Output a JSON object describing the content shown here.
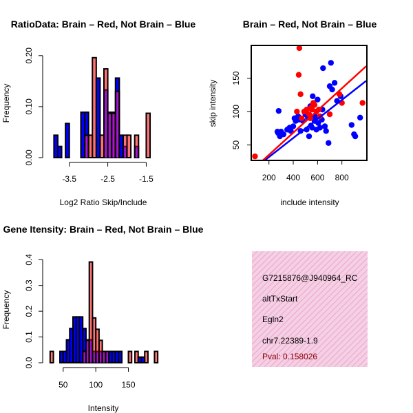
{
  "colors": {
    "red": "#ff0000",
    "blue": "#0000ff",
    "purple": "#a020f0",
    "info_bg": "#f5cfe4",
    "info_hatch": "#e9a6cc",
    "pval": "#8b0000"
  },
  "info_box": {
    "probe_id": "G7215876@J940964_RC",
    "event_type": "altTxStart",
    "gene": "Egln2",
    "location": "chr7.22389-1.9",
    "pval": "Pval: 0.158026"
  },
  "chart_data": [
    {
      "id": "ratio",
      "type": "bar",
      "title": "RatioData: Brain – Red, Not Brain – Blue",
      "xlabel": "Log2 Ratio Skip/Include",
      "ylabel": "Frequency",
      "xlim": [
        -4.05,
        -1.15
      ],
      "ylim": [
        0,
        0.22
      ],
      "xticks": [
        -3.5,
        -2.5,
        -1.5
      ],
      "xtick_labels": [
        "-3.5",
        "-2.5",
        "-1.5"
      ],
      "yticks": [
        0,
        0.1,
        0.2
      ],
      "ytick_labels": [
        "0.00",
        "0.10",
        "0.20"
      ],
      "bin_width": 0.1,
      "series": [
        {
          "name": "Not Brain",
          "color": "blue",
          "bins": [
            [
              -3.9,
              0.044
            ],
            [
              -3.8,
              0.022
            ],
            [
              -3.6,
              0.067
            ],
            [
              -3.2,
              0.089
            ],
            [
              -3.1,
              0.089
            ],
            [
              -2.8,
              0.156
            ],
            [
              -2.6,
              0.133
            ],
            [
              -2.5,
              0.089
            ],
            [
              -2.4,
              0.089
            ],
            [
              -2.3,
              0.156
            ],
            [
              -2.2,
              0.044
            ],
            [
              -2.1,
              0.022
            ],
            [
              -1.8,
              0.022
            ]
          ]
        },
        {
          "name": "Brain",
          "color": "red",
          "bins": [
            [
              -3.1,
              0.044
            ],
            [
              -3.0,
              0.044
            ],
            [
              -2.9,
              0.196
            ],
            [
              -2.7,
              0.044
            ],
            [
              -2.6,
              0.174
            ],
            [
              -2.5,
              0.087
            ],
            [
              -2.4,
              0.087
            ],
            [
              -2.3,
              0.13
            ],
            [
              -2.1,
              0.044
            ],
            [
              -2.0,
              0.044
            ],
            [
              -1.8,
              0.044
            ],
            [
              -1.5,
              0.087
            ]
          ]
        }
      ]
    },
    {
      "id": "scatter",
      "type": "scatter",
      "title": "Brain – Red, Not Brain – Blue",
      "xlabel": "include intensity",
      "ylabel": "skip intensity",
      "xlim": [
        60,
        1000
      ],
      "ylim": [
        28,
        198
      ],
      "xticks": [
        200,
        400,
        600,
        800
      ],
      "xtick_labels": [
        "200",
        "400",
        "600",
        "800"
      ],
      "yticks": [
        50,
        100,
        150
      ],
      "ytick_labels": [
        "50",
        "100",
        "150"
      ],
      "series": [
        {
          "name": "Brain",
          "color": "red",
          "points": [
            [
              85,
              33
            ],
            [
              430,
              100
            ],
            [
              445,
              155
            ],
            [
              450,
              195
            ],
            [
              460,
              126
            ],
            [
              470,
              90
            ],
            [
              490,
              100
            ],
            [
              510,
              103
            ],
            [
              530,
              96
            ],
            [
              540,
              90
            ],
            [
              545,
              106
            ],
            [
              555,
              103
            ],
            [
              565,
              113
            ],
            [
              575,
              110
            ],
            [
              590,
              100
            ],
            [
              610,
              103
            ],
            [
              620,
              93
            ],
            [
              700,
              96
            ],
            [
              780,
              126
            ],
            [
              800,
              113
            ],
            [
              970,
              113
            ]
          ],
          "fit": {
            "x": [
              60,
              1000
            ],
            "y": [
              12,
              168
            ]
          }
        },
        {
          "name": "Not Brain",
          "color": "blue",
          "points": [
            [
              270,
              70
            ],
            [
              275,
              68
            ],
            [
              280,
              101
            ],
            [
              290,
              63
            ],
            [
              300,
              70
            ],
            [
              320,
              66
            ],
            [
              350,
              73
            ],
            [
              370,
              76
            ],
            [
              380,
              71
            ],
            [
              400,
              78
            ],
            [
              410,
              90
            ],
            [
              420,
              86
            ],
            [
              440,
              93
            ],
            [
              450,
              88
            ],
            [
              460,
              71
            ],
            [
              480,
              86
            ],
            [
              500,
              96
            ],
            [
              510,
              73
            ],
            [
              520,
              91
            ],
            [
              530,
              63
            ],
            [
              540,
              108
            ],
            [
              545,
              79
            ],
            [
              555,
              76
            ],
            [
              560,
              123
            ],
            [
              565,
              91
            ],
            [
              575,
              86
            ],
            [
              580,
              93
            ],
            [
              590,
              73
            ],
            [
              600,
              118
            ],
            [
              605,
              83
            ],
            [
              620,
              76
            ],
            [
              635,
              88
            ],
            [
              640,
              103
            ],
            [
              645,
              165
            ],
            [
              660,
              78
            ],
            [
              670,
              71
            ],
            [
              690,
              53
            ],
            [
              700,
              138
            ],
            [
              710,
              173
            ],
            [
              720,
              133
            ],
            [
              740,
              143
            ],
            [
              760,
              116
            ],
            [
              790,
              123
            ],
            [
              880,
              80
            ],
            [
              900,
              66
            ],
            [
              910,
              63
            ],
            [
              950,
              91
            ]
          ],
          "fit": {
            "x": [
              60,
              1000
            ],
            "y": [
              12,
              146
            ]
          }
        }
      ]
    },
    {
      "id": "intensity",
      "type": "bar",
      "title": "Gene Itensity: Brain – Red, Not Brain – Blue",
      "xlabel": "Intensity",
      "ylabel": "Frequency",
      "xlim": [
        27,
        198
      ],
      "ylim": [
        0,
        0.43
      ],
      "xticks": [
        50,
        100,
        150
      ],
      "xtick_labels": [
        "50",
        "100",
        "150"
      ],
      "yticks": [
        0,
        0.1,
        0.2,
        0.3,
        0.4
      ],
      "ytick_labels": [
        "0.0",
        "0.1",
        "0.2",
        "0.3",
        "0.4"
      ],
      "bin_width": 5,
      "series": [
        {
          "name": "Not Brain",
          "color": "blue",
          "bins": [
            [
              45,
              0.044
            ],
            [
              50,
              0.044
            ],
            [
              55,
              0.089
            ],
            [
              60,
              0.133
            ],
            [
              65,
              0.178
            ],
            [
              70,
              0.178
            ],
            [
              75,
              0.178
            ],
            [
              80,
              0.133
            ],
            [
              85,
              0.089
            ],
            [
              90,
              0.089
            ],
            [
              95,
              0.044
            ],
            [
              100,
              0.044
            ],
            [
              105,
              0.044
            ],
            [
              110,
              0.044
            ],
            [
              115,
              0.044
            ],
            [
              120,
              0.044
            ],
            [
              125,
              0.044
            ],
            [
              130,
              0.044
            ],
            [
              135,
              0.044
            ],
            [
              165,
              0.022
            ],
            [
              170,
              0.022
            ]
          ]
        },
        {
          "name": "Brain",
          "color": "red",
          "bins": [
            [
              30,
              0.044
            ],
            [
              80,
              0.044
            ],
            [
              85,
              0.087
            ],
            [
              90,
              0.391
            ],
            [
              95,
              0.174
            ],
            [
              100,
              0.13
            ],
            [
              105,
              0.087
            ],
            [
              110,
              0.044
            ],
            [
              115,
              0.044
            ],
            [
              150,
              0.044
            ],
            [
              160,
              0.044
            ],
            [
              175,
              0.044
            ],
            [
              190,
              0.044
            ]
          ]
        }
      ]
    }
  ]
}
